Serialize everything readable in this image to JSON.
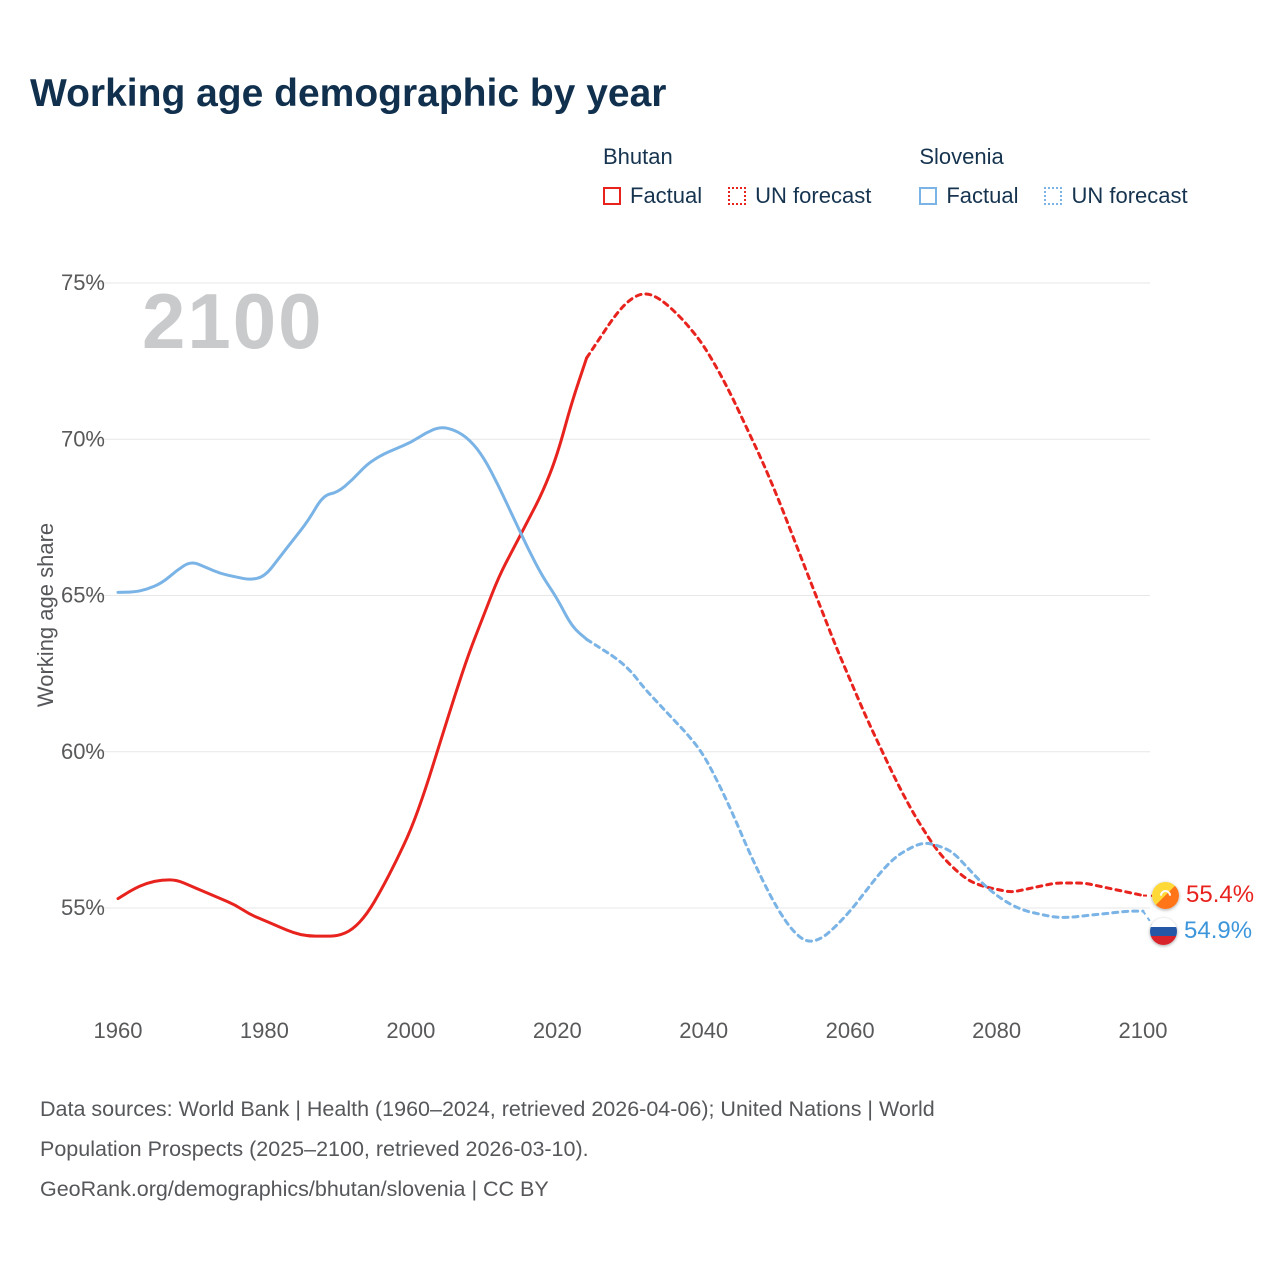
{
  "page": {
    "title": "Working age demographic by year",
    "watermark": "2100",
    "footer_lines": [
      "Data sources: World Bank | Health (1960–2024, retrieved 2026-04-06); United Nations | World",
      "Population Prospects (2025–2100, retrieved 2026-03-10).",
      "GeoRank.org/demographics/bhutan/slovenia | CC BY"
    ]
  },
  "legend": {
    "groups": [
      {
        "name": "Bhutan",
        "color": "#e8231e",
        "items": [
          {
            "label": "Factual",
            "style": "solid"
          },
          {
            "label": "UN forecast",
            "style": "dotted"
          }
        ]
      },
      {
        "name": "Slovenia",
        "color": "#7ab3e5",
        "items": [
          {
            "label": "Factual",
            "style": "solid"
          },
          {
            "label": "UN forecast",
            "style": "dotted"
          }
        ]
      }
    ]
  },
  "chart_data": {
    "type": "line",
    "title": "Working age demographic by year",
    "xlabel": "",
    "ylabel": "Working age share",
    "xlim": [
      1960,
      2100
    ],
    "ylim": [
      53,
      76
    ],
    "x_ticks": [
      1960,
      1980,
      2000,
      2020,
      2040,
      2060,
      2080,
      2100
    ],
    "y_ticks": [
      55,
      60,
      65,
      70,
      75
    ],
    "y_tick_suffix": "%",
    "grid": "horizontal",
    "legend_position": "top-right",
    "series": [
      {
        "id": "bhutan-factual",
        "name": "Bhutan Factual",
        "color": "#e8231e",
        "style": "solid",
        "x": [
          1960,
          1962,
          1964,
          1966,
          1968,
          1970,
          1972,
          1974,
          1976,
          1978,
          1980,
          1982,
          1984,
          1986,
          1988,
          1990,
          1992,
          1994,
          1996,
          1998,
          2000,
          2002,
          2004,
          2006,
          2008,
          2010,
          2012,
          2014,
          2016,
          2018,
          2020,
          2022,
          2024
        ],
        "y": [
          55.3,
          55.6,
          55.8,
          55.9,
          55.9,
          55.7,
          55.5,
          55.3,
          55.1,
          54.8,
          54.6,
          54.4,
          54.2,
          54.1,
          54.1,
          54.1,
          54.3,
          54.8,
          55.6,
          56.5,
          57.5,
          58.8,
          60.3,
          61.8,
          63.2,
          64.4,
          65.6,
          66.5,
          67.4,
          68.3,
          69.5,
          71.2,
          72.6
        ]
      },
      {
        "id": "bhutan-forecast",
        "name": "Bhutan UN forecast",
        "color": "#e8231e",
        "style": "dashed",
        "x": [
          2024,
          2026,
          2028,
          2030,
          2032,
          2034,
          2036,
          2038,
          2040,
          2042,
          2044,
          2046,
          2048,
          2050,
          2052,
          2054,
          2056,
          2058,
          2060,
          2062,
          2064,
          2066,
          2068,
          2070,
          2072,
          2074,
          2076,
          2078,
          2080,
          2082,
          2084,
          2086,
          2088,
          2090,
          2092,
          2094,
          2096,
          2098,
          2100
        ],
        "y": [
          72.6,
          73.3,
          74.0,
          74.5,
          74.7,
          74.5,
          74.1,
          73.6,
          73.0,
          72.2,
          71.3,
          70.3,
          69.3,
          68.2,
          67.0,
          65.8,
          64.6,
          63.4,
          62.3,
          61.2,
          60.2,
          59.2,
          58.3,
          57.5,
          56.8,
          56.3,
          55.9,
          55.7,
          55.6,
          55.5,
          55.6,
          55.7,
          55.8,
          55.8,
          55.8,
          55.7,
          55.6,
          55.5,
          55.4
        ]
      },
      {
        "id": "slovenia-factual",
        "name": "Slovenia Factual",
        "color": "#7ab3e5",
        "style": "solid",
        "x": [
          1960,
          1962,
          1964,
          1966,
          1968,
          1970,
          1972,
          1974,
          1976,
          1978,
          1980,
          1982,
          1984,
          1986,
          1988,
          1990,
          1992,
          1994,
          1996,
          1998,
          2000,
          2002,
          2004,
          2006,
          2008,
          2010,
          2012,
          2014,
          2016,
          2018,
          2020,
          2022,
          2024
        ],
        "y": [
          65.1,
          65.1,
          65.2,
          65.4,
          65.8,
          66.1,
          65.9,
          65.7,
          65.6,
          65.5,
          65.6,
          66.2,
          66.8,
          67.4,
          68.2,
          68.3,
          68.7,
          69.2,
          69.5,
          69.7,
          69.9,
          70.2,
          70.4,
          70.3,
          70.0,
          69.4,
          68.5,
          67.5,
          66.5,
          65.6,
          64.9,
          64.0,
          63.6
        ]
      },
      {
        "id": "slovenia-forecast",
        "name": "Slovenia UN forecast",
        "color": "#7ab3e5",
        "style": "dashed",
        "x": [
          2024,
          2026,
          2028,
          2030,
          2032,
          2034,
          2036,
          2038,
          2040,
          2042,
          2044,
          2046,
          2048,
          2050,
          2052,
          2054,
          2056,
          2058,
          2060,
          2062,
          2064,
          2066,
          2068,
          2070,
          2072,
          2074,
          2076,
          2078,
          2080,
          2082,
          2084,
          2086,
          2088,
          2090,
          2092,
          2094,
          2096,
          2098,
          2100
        ],
        "y": [
          63.6,
          63.3,
          63.0,
          62.6,
          62.0,
          61.5,
          61.0,
          60.5,
          59.9,
          59.0,
          58.0,
          56.9,
          55.9,
          55.0,
          54.3,
          53.9,
          54.0,
          54.4,
          54.9,
          55.5,
          56.1,
          56.6,
          56.9,
          57.1,
          57.0,
          56.8,
          56.3,
          55.8,
          55.4,
          55.1,
          54.9,
          54.8,
          54.7,
          54.7,
          54.75,
          54.8,
          54.85,
          54.9,
          54.9
        ]
      }
    ],
    "end_labels": [
      {
        "text": "55.4%",
        "value": 55.4,
        "color": "#e8231e",
        "flag": "bhutan"
      },
      {
        "text": "54.9%",
        "value": 54.9,
        "color": "#3d96db",
        "flag": "slovenia"
      }
    ]
  }
}
